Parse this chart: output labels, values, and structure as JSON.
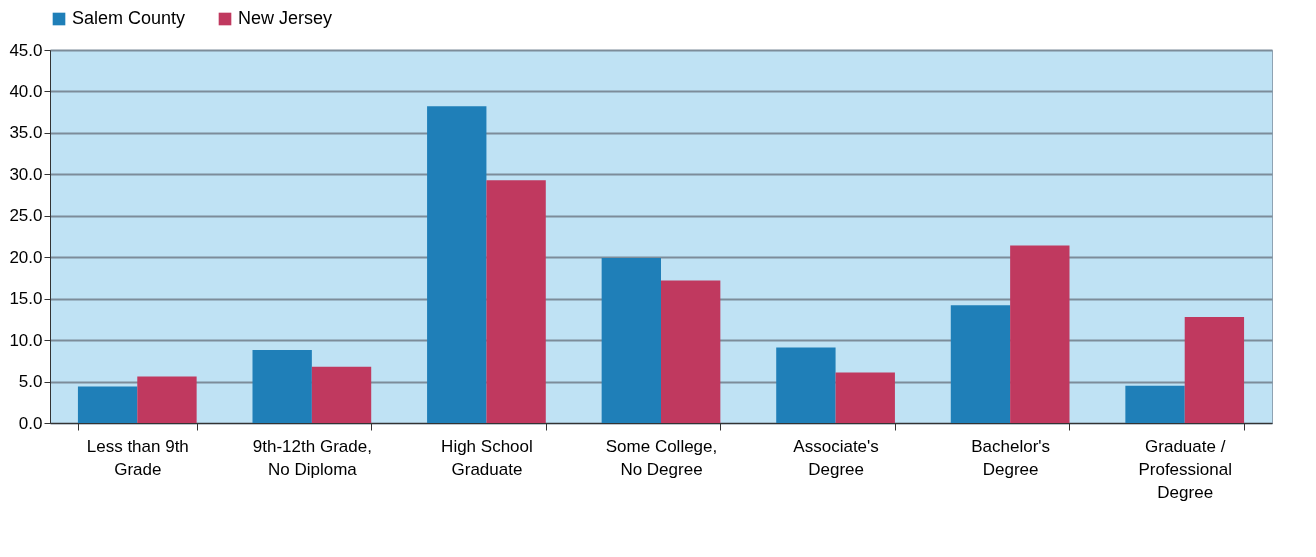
{
  "chart_data": {
    "type": "bar",
    "categories": [
      "Less than 9th Grade",
      "9th-12th Grade, No Diploma",
      "High School Graduate",
      "Some College, No Degree",
      "Associate's Degree",
      "Bachelor's Degree",
      "Graduate / Professional Degree"
    ],
    "series": [
      {
        "name": "Salem County",
        "color": "#1f7fb8",
        "values": [
          4.4,
          8.8,
          38.2,
          19.9,
          9.1,
          14.2,
          4.5
        ]
      },
      {
        "name": "New Jersey",
        "color": "#c0395f",
        "values": [
          5.6,
          6.8,
          29.3,
          17.2,
          6.1,
          21.4,
          12.8
        ]
      }
    ],
    "ylim": [
      0,
      45
    ],
    "yticks": [
      {
        "value": 0,
        "label": "0.0"
      },
      {
        "value": 5,
        "label": "5.0"
      },
      {
        "value": 10,
        "label": "10.0"
      },
      {
        "value": 15,
        "label": "15.0"
      },
      {
        "value": 20,
        "label": "20.0"
      },
      {
        "value": 25,
        "label": "25.0"
      },
      {
        "value": 30,
        "label": "30.0"
      },
      {
        "value": 35,
        "label": "35.0"
      },
      {
        "value": 40,
        "label": "40.0"
      },
      {
        "value": 45,
        "label": "45.0"
      }
    ],
    "grid": true,
    "legend": "top"
  }
}
